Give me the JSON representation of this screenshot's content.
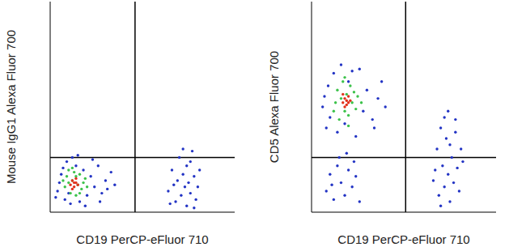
{
  "chart_data": [
    {
      "type": "scatter",
      "x_label": "CD19 PerCP-eFluor 710",
      "y_label": "Mouse IgG1 Alexa Fluor 700",
      "xlim": [
        0,
        100
      ],
      "ylim": [
        0,
        100
      ],
      "tick_labels": false,
      "gates": {
        "x": 46,
        "y": 26
      },
      "series": [
        {
          "color": "#2233c4",
          "x": [
            4,
            6,
            8,
            9,
            11,
            12,
            14,
            16,
            18,
            20,
            22,
            24,
            26,
            28,
            30,
            33,
            5,
            7,
            10,
            15,
            19,
            23,
            27,
            31,
            3,
            35,
            64,
            66,
            68,
            69,
            70,
            71,
            72,
            73,
            74,
            74,
            75,
            76,
            77,
            78,
            79,
            80,
            81,
            67,
            72,
            76,
            65,
            78
          ],
          "values": [
            10,
            18,
            6,
            24,
            4,
            26,
            22,
            5,
            20,
            8,
            17,
            12,
            22,
            9,
            15,
            19,
            14,
            21,
            9,
            27,
            3,
            25,
            5,
            11,
            7,
            13,
            10,
            20,
            5,
            15,
            26,
            8,
            18,
            12,
            3,
            22,
            14,
            9,
            29,
            17,
            6,
            12,
            20,
            13,
            30,
            24,
            4,
            2
          ]
        },
        {
          "color": "#3cc24a",
          "x": [
            8,
            9,
            10,
            11,
            12,
            13,
            14,
            15,
            16,
            17,
            18,
            19,
            12,
            20,
            10,
            14,
            16,
            7
          ],
          "values": [
            12,
            17,
            20,
            9,
            15,
            19,
            8,
            13,
            18,
            11,
            14,
            16,
            21,
            12,
            14,
            17,
            9,
            15
          ]
        },
        {
          "color": "#e2301c",
          "x": [
            11,
            12,
            13,
            13,
            14,
            12,
            14,
            15
          ],
          "values": [
            13,
            15,
            12,
            14,
            14,
            11,
            16,
            13
          ]
        }
      ]
    },
    {
      "type": "scatter",
      "x_label": "CD19 PerCP-eFluor 710",
      "y_label": "CD5 Alexa Fluor 700",
      "xlim": [
        0,
        100
      ],
      "ylim": [
        0,
        100
      ],
      "tick_labels": false,
      "gates": {
        "x": 51,
        "y": 26
      },
      "series": [
        {
          "color": "#2233c4",
          "x": [
            6,
            8,
            9,
            10,
            12,
            14,
            16,
            18,
            20,
            24,
            26,
            28,
            30,
            33,
            36,
            38,
            40,
            7,
            22,
            34,
            8,
            10,
            12,
            14,
            16,
            18,
            20,
            22,
            24,
            26,
            15,
            19,
            11,
            23,
            66,
            68,
            69,
            70,
            71,
            72,
            73,
            74,
            74,
            75,
            76,
            77,
            78,
            79,
            80,
            81,
            72,
            75,
            70,
            78,
            82,
            67
          ],
          "values": [
            50,
            40,
            60,
            45,
            66,
            38,
            70,
            42,
            62,
            36,
            68,
            48,
            58,
            44,
            54,
            62,
            50,
            55,
            67,
            40,
            10,
            18,
            6,
            22,
            14,
            8,
            20,
            12,
            17,
            5,
            26,
            28,
            13,
            24,
            15,
            30,
            8,
            40,
            22,
            12,
            35,
            18,
            48,
            5,
            26,
            14,
            38,
            21,
            10,
            30,
            45,
            32,
            3,
            44,
            24,
            20
          ]
        },
        {
          "color": "#3cc24a",
          "x": [
            12,
            14,
            15,
            16,
            17,
            18,
            19,
            20,
            21,
            22,
            23,
            24,
            25,
            13,
            27,
            18,
            20
          ],
          "values": [
            48,
            58,
            44,
            54,
            62,
            48,
            56,
            46,
            60,
            52,
            57,
            49,
            55,
            52,
            52,
            64,
            41
          ]
        },
        {
          "color": "#e2301c",
          "x": [
            17,
            18,
            19,
            19,
            20,
            18,
            20,
            17,
            21
          ],
          "values": [
            52,
            54,
            51,
            53,
            55,
            50,
            52,
            56,
            53
          ]
        }
      ]
    }
  ]
}
